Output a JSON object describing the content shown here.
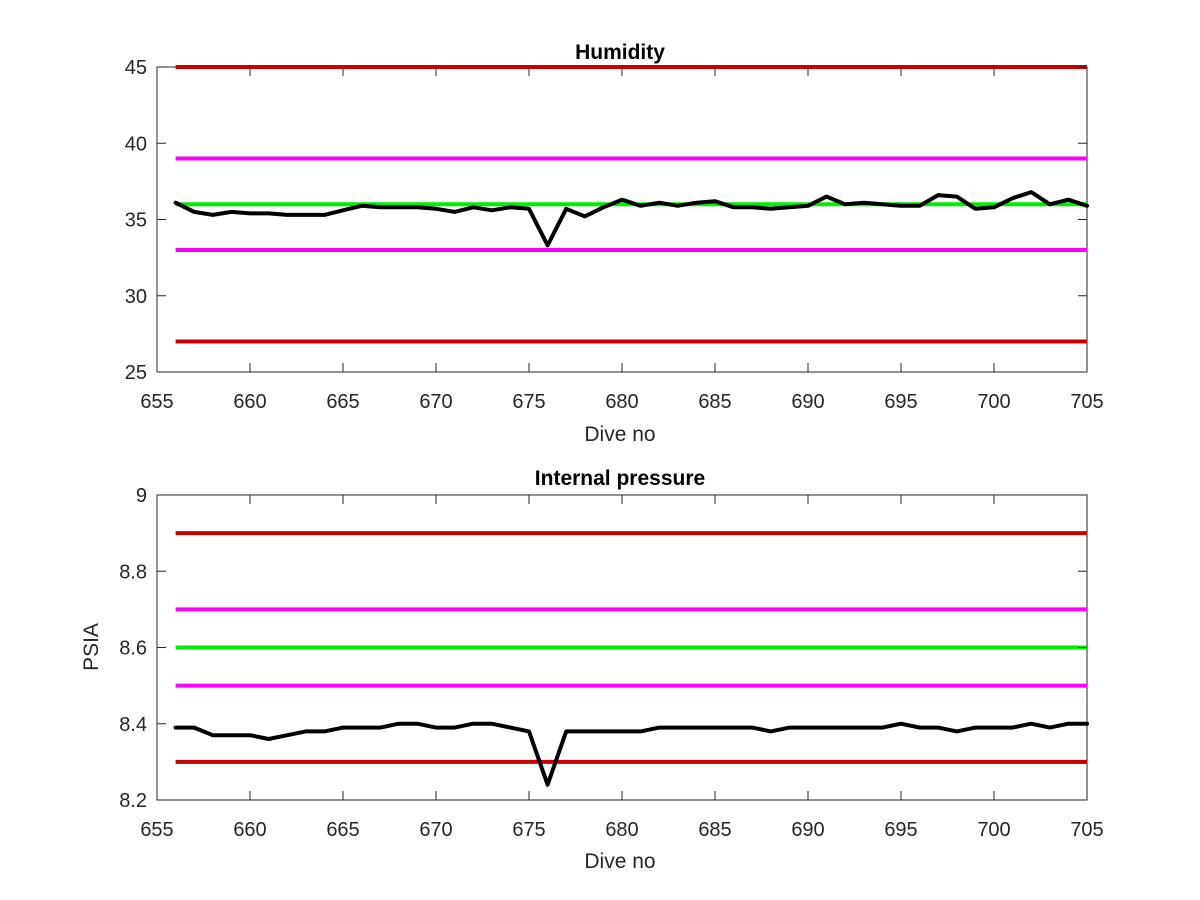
{
  "chart_data": [
    {
      "type": "line",
      "title": "Humidity",
      "xlabel": "Dive no",
      "ylabel": "",
      "xlim": [
        655,
        705
      ],
      "ylim": [
        25,
        45
      ],
      "xticks": [
        655,
        660,
        665,
        670,
        675,
        680,
        685,
        690,
        695,
        700,
        705
      ],
      "yticks": [
        25,
        30,
        35,
        40,
        45
      ],
      "grid": false,
      "legend": "none",
      "reference_lines": [
        {
          "y": 45,
          "color": "#cc0000"
        },
        {
          "y": 39,
          "color": "#ff00ff"
        },
        {
          "y": 36,
          "color": "#00ee00"
        },
        {
          "y": 33,
          "color": "#ff00ff"
        },
        {
          "y": 27,
          "color": "#cc0000"
        }
      ],
      "series": [
        {
          "color": "#000000",
          "x": [
            656,
            657,
            658,
            659,
            660,
            661,
            662,
            663,
            664,
            665,
            666,
            667,
            668,
            669,
            670,
            671,
            672,
            673,
            674,
            675,
            676,
            677,
            678,
            679,
            680,
            681,
            682,
            683,
            684,
            685,
            686,
            687,
            688,
            689,
            690,
            691,
            692,
            693,
            694,
            695,
            696,
            697,
            698,
            699,
            700,
            701,
            702,
            703,
            704,
            705
          ],
          "values": [
            36.1,
            35.5,
            35.3,
            35.5,
            35.4,
            35.4,
            35.3,
            35.3,
            35.3,
            35.6,
            35.9,
            35.8,
            35.8,
            35.8,
            35.7,
            35.5,
            35.8,
            35.6,
            35.8,
            35.7,
            33.3,
            35.7,
            35.2,
            35.8,
            36.3,
            35.9,
            36.1,
            35.9,
            36.1,
            36.2,
            35.8,
            35.8,
            35.7,
            35.8,
            35.9,
            36.5,
            36.0,
            36.1,
            36.0,
            35.9,
            35.9,
            36.6,
            36.5,
            35.7,
            35.8,
            36.4,
            36.8,
            36.0,
            36.3,
            35.9
          ]
        }
      ]
    },
    {
      "type": "line",
      "title": "Internal pressure",
      "xlabel": "Dive no",
      "ylabel": "PSIA",
      "xlim": [
        655,
        705
      ],
      "ylim": [
        8.2,
        9
      ],
      "xticks": [
        655,
        660,
        665,
        670,
        675,
        680,
        685,
        690,
        695,
        700,
        705
      ],
      "yticks": [
        "8.2",
        "8.4",
        "8.6",
        "8.8",
        "9"
      ],
      "grid": false,
      "legend": "none",
      "reference_lines": [
        {
          "y": 8.9,
          "color": "#cc0000"
        },
        {
          "y": 8.7,
          "color": "#ff00ff"
        },
        {
          "y": 8.6,
          "color": "#00ee00"
        },
        {
          "y": 8.5,
          "color": "#ff00ff"
        },
        {
          "y": 8.3,
          "color": "#cc0000"
        }
      ],
      "series": [
        {
          "color": "#000000",
          "x": [
            656,
            657,
            658,
            659,
            660,
            661,
            662,
            663,
            664,
            665,
            666,
            667,
            668,
            669,
            670,
            671,
            672,
            673,
            674,
            675,
            676,
            677,
            678,
            679,
            680,
            681,
            682,
            683,
            684,
            685,
            686,
            687,
            688,
            689,
            690,
            691,
            692,
            693,
            694,
            695,
            696,
            697,
            698,
            699,
            700,
            701,
            702,
            703,
            704,
            705
          ],
          "values": [
            8.39,
            8.39,
            8.37,
            8.37,
            8.37,
            8.36,
            8.37,
            8.38,
            8.38,
            8.39,
            8.39,
            8.39,
            8.4,
            8.4,
            8.39,
            8.39,
            8.4,
            8.4,
            8.39,
            8.38,
            8.24,
            8.38,
            8.38,
            8.38,
            8.38,
            8.38,
            8.39,
            8.39,
            8.39,
            8.39,
            8.39,
            8.39,
            8.38,
            8.39,
            8.39,
            8.39,
            8.39,
            8.39,
            8.39,
            8.4,
            8.39,
            8.39,
            8.38,
            8.39,
            8.39,
            8.39,
            8.4,
            8.39,
            8.4,
            8.4
          ]
        }
      ]
    }
  ]
}
